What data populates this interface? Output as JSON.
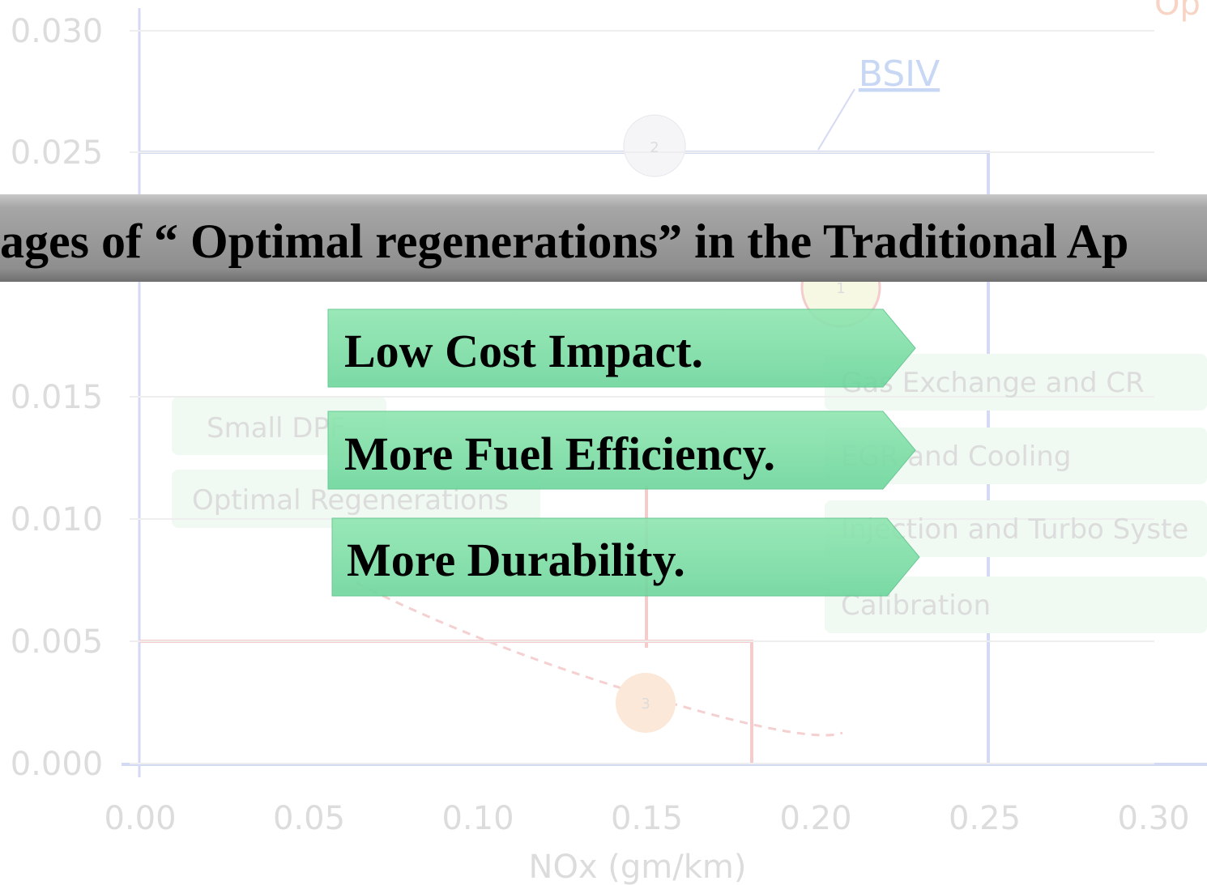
{
  "banner": "ages of “ Optimal regenerations” in the Traditional Ap",
  "points": [
    "Low Cost Impact.",
    "More Fuel Efficiency.",
    "More Durability."
  ],
  "background": {
    "y_labels": [
      "0.030",
      "0.025",
      "0.015",
      "0.010",
      "0.005",
      "0.000"
    ],
    "x_labels": [
      "0.00",
      "0.05",
      "0.10",
      "0.15",
      "0.20",
      "0.25",
      "0.30"
    ],
    "x_title": "NOx (gm/km)",
    "corner": "Op",
    "standard": "BSIV",
    "left_boxes": [
      "Small DPF",
      "Optimal Regenerations"
    ],
    "right_boxes": [
      "Gas Exchange and CR",
      "EGR and Cooling",
      "Injection and Turbo Syste",
      "Calibration"
    ],
    "circles": [
      "2",
      "1",
      "3"
    ]
  }
}
